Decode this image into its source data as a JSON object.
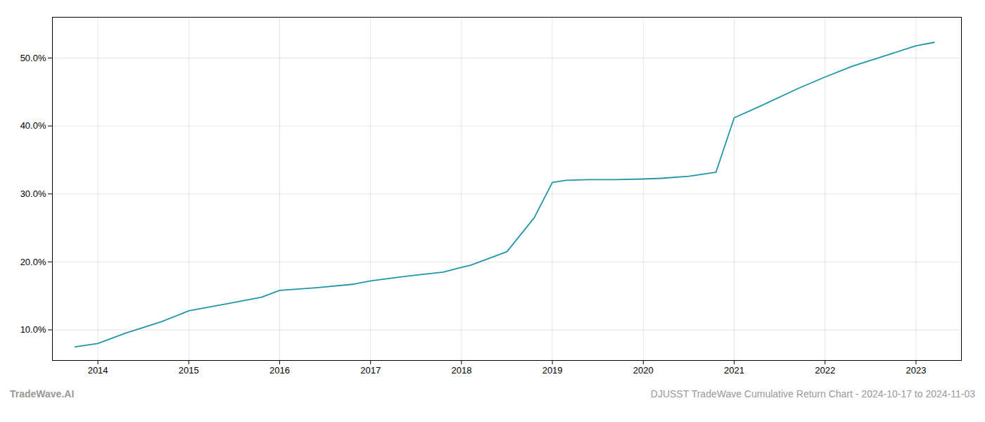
{
  "chart_data": {
    "type": "line",
    "x": [
      2013.75,
      2014.0,
      2014.3,
      2014.7,
      2015.0,
      2015.4,
      2015.8,
      2016.0,
      2016.4,
      2016.8,
      2017.0,
      2017.4,
      2017.8,
      2018.0,
      2018.1,
      2018.5,
      2018.8,
      2019.0,
      2019.15,
      2019.4,
      2019.7,
      2020.0,
      2020.2,
      2020.5,
      2020.8,
      2021.0,
      2021.3,
      2021.7,
      2022.0,
      2022.3,
      2022.7,
      2023.0,
      2023.2
    ],
    "values": [
      7.5,
      8.0,
      9.5,
      11.2,
      12.8,
      13.8,
      14.8,
      15.8,
      16.2,
      16.7,
      17.2,
      17.9,
      18.5,
      19.2,
      19.5,
      21.5,
      26.5,
      31.7,
      32.0,
      32.1,
      32.1,
      32.2,
      32.3,
      32.6,
      33.2,
      41.2,
      43.0,
      45.5,
      47.2,
      48.8,
      50.5,
      51.8,
      52.3
    ],
    "color": "#2196a6",
    "xlim": [
      2013.5,
      2023.5
    ],
    "ylim": [
      5.5,
      56.0
    ],
    "xticks": [
      2014,
      2015,
      2016,
      2017,
      2018,
      2019,
      2020,
      2021,
      2022,
      2023
    ],
    "yticks": [
      {
        "value": 10.0,
        "label": "10.0%"
      },
      {
        "value": 20.0,
        "label": "20.0%"
      },
      {
        "value": 30.0,
        "label": "30.0%"
      },
      {
        "value": 40.0,
        "label": "40.0%"
      },
      {
        "value": 50.0,
        "label": "50.0%"
      }
    ],
    "grid": true,
    "annotations": [
      "TradeWave.AI",
      "DJUSST TradeWave Cumulative Return Chart - 2024-10-17 to 2024-11-03"
    ]
  }
}
